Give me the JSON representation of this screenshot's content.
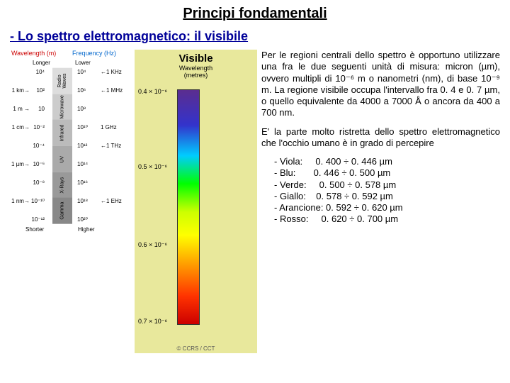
{
  "title": "Principi fondamentali",
  "subtitle": "- Lo spettro elettromagnetico: il visibile",
  "diagram": {
    "wavelength_label": "Wavelength (m)",
    "frequency_label": "Frequency (Hz)",
    "longer": "Longer",
    "lower": "Lower",
    "shorter": "Shorter",
    "higher": "Higher",
    "wave_ticks": [
      "10⁴",
      "10²",
      "10",
      "10⁻²",
      "10⁻⁴",
      "10⁻⁶",
      "10⁻⁸",
      "10⁻¹⁰",
      "10⁻¹²"
    ],
    "unit_ticks": [
      "",
      "1 km→",
      "1 m →",
      "1 cm→",
      "",
      "1 µm→",
      "",
      "1 nm→",
      ""
    ],
    "freq_ticks": [
      "10⁴",
      "10⁶",
      "10⁸",
      "10¹⁰",
      "10¹²",
      "10¹⁴",
      "10¹⁶",
      "10¹⁸",
      "10²⁰"
    ],
    "freq_units": [
      "←1 KHz",
      "←1 MHz",
      "",
      "1 GHz",
      "←1 THz",
      "",
      "",
      "←1 EHz",
      ""
    ],
    "bands": [
      {
        "name": "Radio Waves",
        "bg": "#dddddd"
      },
      {
        "name": "Microwave",
        "bg": "#cccccc"
      },
      {
        "name": "Infrared",
        "bg": "#bbbbbb"
      },
      {
        "name": "UV",
        "bg": "#aaaaaa"
      },
      {
        "name": "X-Rays",
        "bg": "#999999"
      },
      {
        "name": "Gamma",
        "bg": "#888888"
      }
    ]
  },
  "visible": {
    "title": "Visible",
    "sub1": "Wavelength",
    "sub2": "(metres)",
    "top_val": "0.4 × 10⁻⁶",
    "mid_val": "0.5 × 10⁻⁶",
    "mid2_val": "0.6 × 10⁻⁶",
    "bot_val": "0.7 × 10⁻⁶",
    "copyright": "© CCRS / CCT"
  },
  "para1": "Per le regioni centrali dello spettro è opportuno utilizzare una fra le due seguenti unità di misura: micron (µm), ovvero multipli di 10⁻⁶ m o nanometri (nm), di base 10⁻⁹ m. La regione visibile occupa l'intervallo fra 0. 4 e 0. 7 µm, o quello equivalente da 4000 a 7000 Å o ancora da 400 a 700 nm.",
  "para2": "E' la parte molto ristretta dello spettro elettromagnetico che l'occhio umano è in grado di percepire",
  "colors": [
    {
      "name": "- Viola:",
      "range": "0. 400 ÷ 0. 446 µm"
    },
    {
      "name": "- Blu:",
      "range": "0. 446 ÷ 0. 500 µm"
    },
    {
      "name": "- Verde:",
      "range": "0. 500 ÷ 0. 578 µm"
    },
    {
      "name": "- Giallo:",
      "range": "0. 578 ÷ 0. 592 µm"
    },
    {
      "name": "- Arancione:",
      "range": "0. 592 ÷ 0. 620 µm"
    },
    {
      "name": "- Rosso:",
      "range": "0. 620 ÷ 0. 700 µm"
    }
  ]
}
